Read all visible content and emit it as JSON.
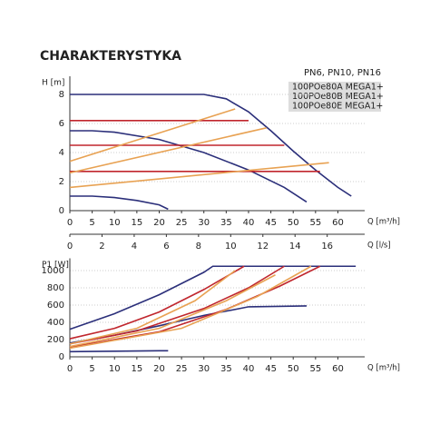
{
  "chart_data": [
    {
      "type": "line",
      "title": "CHARAKTERYSTYKA",
      "subtitle": "PN6, PN10, PN16",
      "legend": [
        "100POe80A MEGA1+",
        "100POe80B MEGA1+",
        "100POe80E MEGA1+"
      ],
      "y_label": "H [m]",
      "x_label": "Q [m³/h]",
      "x2_label": "Q [l/s]",
      "xlim": [
        0,
        66
      ],
      "ylim": [
        0,
        9
      ],
      "xticks": [
        0,
        5,
        10,
        15,
        20,
        25,
        30,
        35,
        40,
        45,
        50,
        55,
        60
      ],
      "yticks": [
        0,
        2,
        4,
        6,
        8
      ],
      "x2lim": [
        0,
        18.33
      ],
      "x2ticks": [
        0,
        2,
        4,
        6,
        8,
        10,
        12,
        14,
        16
      ],
      "grid": true,
      "series": [
        {
          "color": "#2b2f7a",
          "x": [
            0,
            10,
            20,
            30,
            35,
            40,
            45,
            50,
            55,
            60,
            63
          ],
          "values": [
            8.0,
            8.0,
            8.0,
            8.0,
            7.7,
            6.8,
            5.5,
            4.1,
            2.8,
            1.6,
            1.0
          ]
        },
        {
          "color": "#2b2f7a",
          "x": [
            0,
            5,
            10,
            20,
            30,
            40,
            48,
            53
          ],
          "values": [
            5.5,
            5.5,
            5.4,
            4.9,
            4.0,
            2.8,
            1.6,
            0.6
          ]
        },
        {
          "color": "#2b2f7a",
          "x": [
            0,
            5,
            10,
            15,
            20,
            22
          ],
          "values": [
            1.0,
            1.0,
            0.9,
            0.7,
            0.4,
            0.1
          ]
        },
        {
          "color": "#c0262d",
          "x": [
            0,
            40
          ],
          "values": [
            6.2,
            6.2
          ]
        },
        {
          "color": "#c0262d",
          "x": [
            0,
            48
          ],
          "values": [
            4.5,
            4.5
          ]
        },
        {
          "color": "#c0262d",
          "x": [
            0,
            56
          ],
          "values": [
            2.7,
            2.7
          ]
        },
        {
          "color": "#e8a253",
          "x": [
            0,
            37
          ],
          "values": [
            3.4,
            7.0
          ]
        },
        {
          "color": "#e8a253",
          "x": [
            0,
            44
          ],
          "values": [
            2.6,
            5.7
          ]
        },
        {
          "color": "#e8a253",
          "x": [
            0,
            58
          ],
          "values": [
            1.6,
            3.3
          ]
        }
      ]
    },
    {
      "type": "line",
      "y_label": "P1 [W]",
      "x_label": "Q [m³/h]",
      "xlim": [
        0,
        66
      ],
      "ylim": [
        0,
        1100
      ],
      "xticks": [
        0,
        5,
        10,
        15,
        20,
        25,
        30,
        35,
        40,
        45,
        50,
        55,
        60
      ],
      "yticks": [
        0,
        200,
        400,
        600,
        800,
        1000
      ],
      "grid": true,
      "series": [
        {
          "color": "#2b2f7a",
          "x": [
            0,
            10,
            20,
            30,
            32,
            64
          ],
          "values": [
            320,
            500,
            720,
            980,
            1050,
            1050
          ]
        },
        {
          "color": "#2b2f7a",
          "x": [
            0,
            10,
            20,
            30,
            40,
            53
          ],
          "values": [
            160,
            250,
            360,
            480,
            580,
            590
          ]
        },
        {
          "color": "#2b2f7a",
          "x": [
            0,
            10,
            20,
            22
          ],
          "values": [
            60,
            65,
            70,
            70
          ]
        },
        {
          "color": "#c0262d",
          "x": [
            0,
            10,
            20,
            30,
            39
          ],
          "values": [
            210,
            330,
            520,
            780,
            1050
          ]
        },
        {
          "color": "#c0262d",
          "x": [
            0,
            15,
            30,
            40,
            48
          ],
          "values": [
            150,
            300,
            560,
            800,
            1050
          ]
        },
        {
          "color": "#c0262d",
          "x": [
            0,
            20,
            35,
            47,
            56
          ],
          "values": [
            110,
            290,
            550,
            820,
            1050
          ]
        },
        {
          "color": "#e8a253",
          "x": [
            0,
            15,
            28,
            37
          ],
          "values": [
            150,
            330,
            650,
            1000
          ]
        },
        {
          "color": "#e8a253",
          "x": [
            0,
            20,
            35,
            46
          ],
          "values": [
            120,
            330,
            650,
            950
          ]
        },
        {
          "color": "#e8a253",
          "x": [
            0,
            25,
            42,
            54
          ],
          "values": [
            100,
            330,
            700,
            1050
          ]
        }
      ]
    }
  ]
}
